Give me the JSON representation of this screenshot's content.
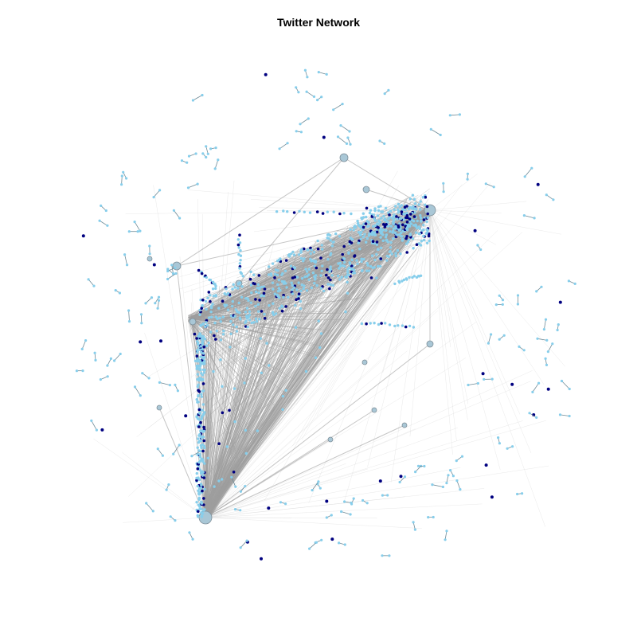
{
  "title": "Twitter Network",
  "colors": {
    "edge": "#9e9e9e",
    "edge_light": "#d4d4d4",
    "node_light": "#87ceeb",
    "node_dark": "#000080",
    "hub_fill": "#a9c7d6",
    "hub_stroke": "#7f8f99"
  }
}
